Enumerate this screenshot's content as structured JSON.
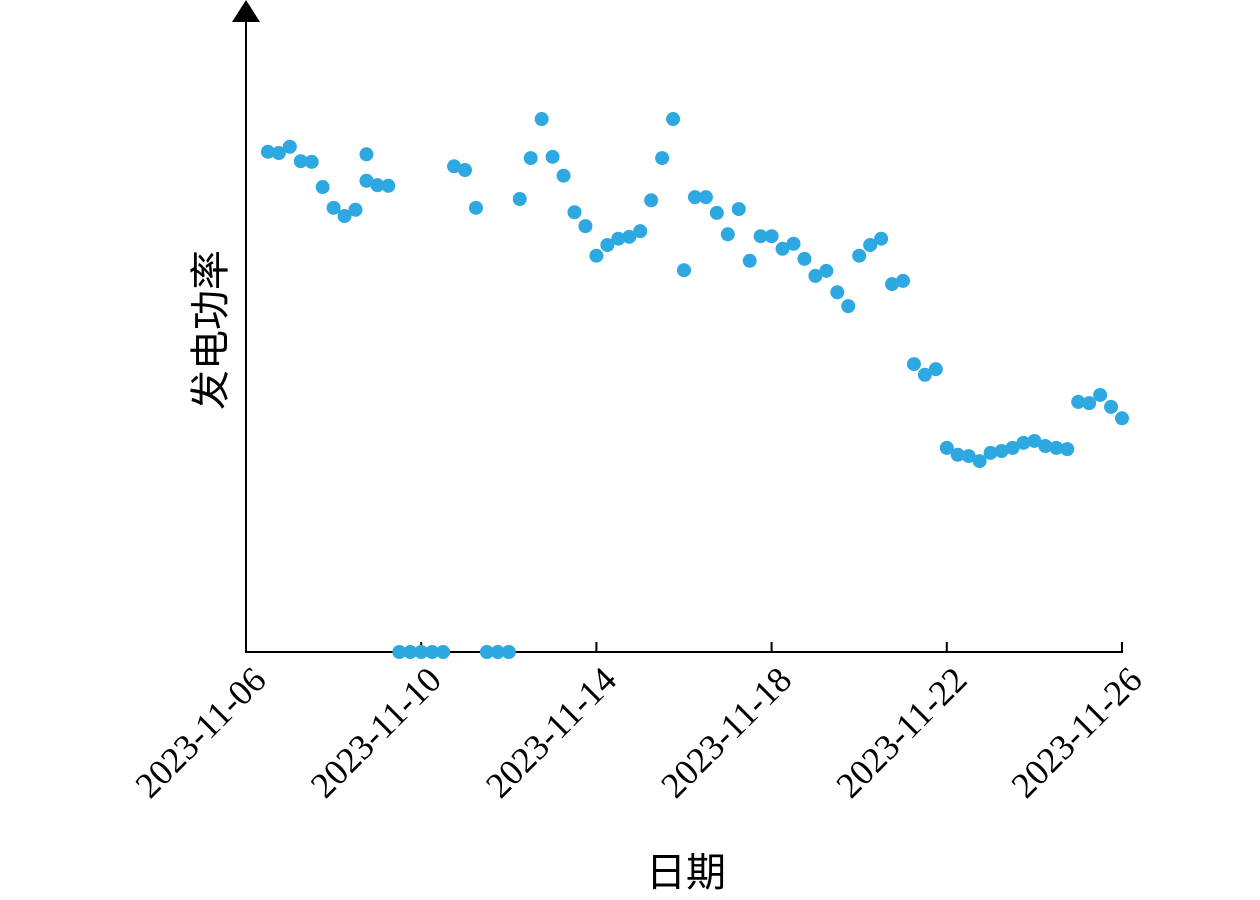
{
  "chart_data": {
    "type": "scatter",
    "x_label": "日期",
    "y_label": "发电功率",
    "color": "#2ea8e0",
    "x": [
      "2023-11-06 12:00",
      "2023-11-06 18:00",
      "2023-11-07 00:00",
      "2023-11-07 06:00",
      "2023-11-07 12:00",
      "2023-11-07 18:00",
      "2023-11-08 00:00",
      "2023-11-08 06:00",
      "2023-11-08 12:00",
      "2023-11-08 18:00",
      "2023-11-08 18:00",
      "2023-11-09 00:00",
      "2023-11-09 06:00",
      "2023-11-09 12:00",
      "2023-11-09 18:00",
      "2023-11-10 00:00",
      "2023-11-10 06:00",
      "2023-11-10 12:00",
      "2023-11-10 18:00",
      "2023-11-11 00:00",
      "2023-11-11 06:00",
      "2023-11-11 12:00",
      "2023-11-11 18:00",
      "2023-11-12 00:00",
      "2023-11-12 06:00",
      "2023-11-12 12:00",
      "2023-11-12 18:00",
      "2023-11-13 00:00",
      "2023-11-13 06:00",
      "2023-11-13 12:00",
      "2023-11-13 18:00",
      "2023-11-14 00:00",
      "2023-11-14 06:00",
      "2023-11-14 12:00",
      "2023-11-14 18:00",
      "2023-11-15 00:00",
      "2023-11-15 06:00",
      "2023-11-15 12:00",
      "2023-11-15 18:00",
      "2023-11-16 00:00",
      "2023-11-16 06:00",
      "2023-11-16 12:00",
      "2023-11-16 18:00",
      "2023-11-17 00:00",
      "2023-11-17 06:00",
      "2023-11-17 12:00",
      "2023-11-17 18:00",
      "2023-11-18 00:00",
      "2023-11-18 06:00",
      "2023-11-18 12:00",
      "2023-11-18 18:00",
      "2023-11-19 00:00",
      "2023-11-19 06:00",
      "2023-11-19 12:00",
      "2023-11-19 18:00",
      "2023-11-20 00:00",
      "2023-11-20 06:00",
      "2023-11-20 12:00",
      "2023-11-20 18:00",
      "2023-11-21 00:00",
      "2023-11-21 06:00",
      "2023-11-21 12:00",
      "2023-11-21 18:00",
      "2023-11-22 00:00",
      "2023-11-22 06:00",
      "2023-11-22 12:00",
      "2023-11-22 18:00",
      "2023-11-23 00:00",
      "2023-11-23 06:00",
      "2023-11-23 12:00",
      "2023-11-23 18:00",
      "2023-11-24 00:00",
      "2023-11-24 06:00",
      "2023-11-24 12:00",
      "2023-11-24 18:00",
      "2023-11-25 00:00",
      "2023-11-25 06:00",
      "2023-11-25 12:00",
      "2023-11-25 18:00",
      "2023-11-26 00:00"
    ],
    "values": [
      79.4,
      79.2,
      80.2,
      77.9,
      77.8,
      73.8,
      70.5,
      69.2,
      70.2,
      79.0,
      74.8,
      74.1,
      74.0,
      0,
      0,
      0,
      0,
      0,
      77.1,
      76.5,
      70.5,
      0,
      0,
      0,
      71.9,
      78.4,
      84.6,
      78.6,
      75.6,
      69.8,
      67.6,
      62.9,
      64.6,
      65.6,
      65.9,
      66.8,
      71.7,
      78.4,
      84.6,
      60.6,
      72.2,
      72.2,
      69.7,
      66.3,
      70.3,
      62.1,
      66.0,
      66.0,
      64.0,
      64.8,
      62.4,
      59.7,
      60.5,
      57.1,
      54.9,
      62.9,
      64.6,
      65.6,
      58.4,
      58.9,
      45.7,
      44.0,
      44.9,
      32.4,
      31.3,
      31.1,
      30.3,
      31.6,
      31.9,
      32.4,
      33.2,
      33.5,
      32.7,
      32.4,
      32.2,
      39.7,
      39.5,
      40.8,
      38.9,
      37.1
    ],
    "xlim": [
      "2023-11-06",
      "2023-11-26"
    ],
    "xticks": [
      "2023-11-06",
      "2023-11-10",
      "2023-11-14",
      "2023-11-18",
      "2023-11-22",
      "2023-11-26"
    ],
    "ylim": [
      0,
      100
    ]
  }
}
